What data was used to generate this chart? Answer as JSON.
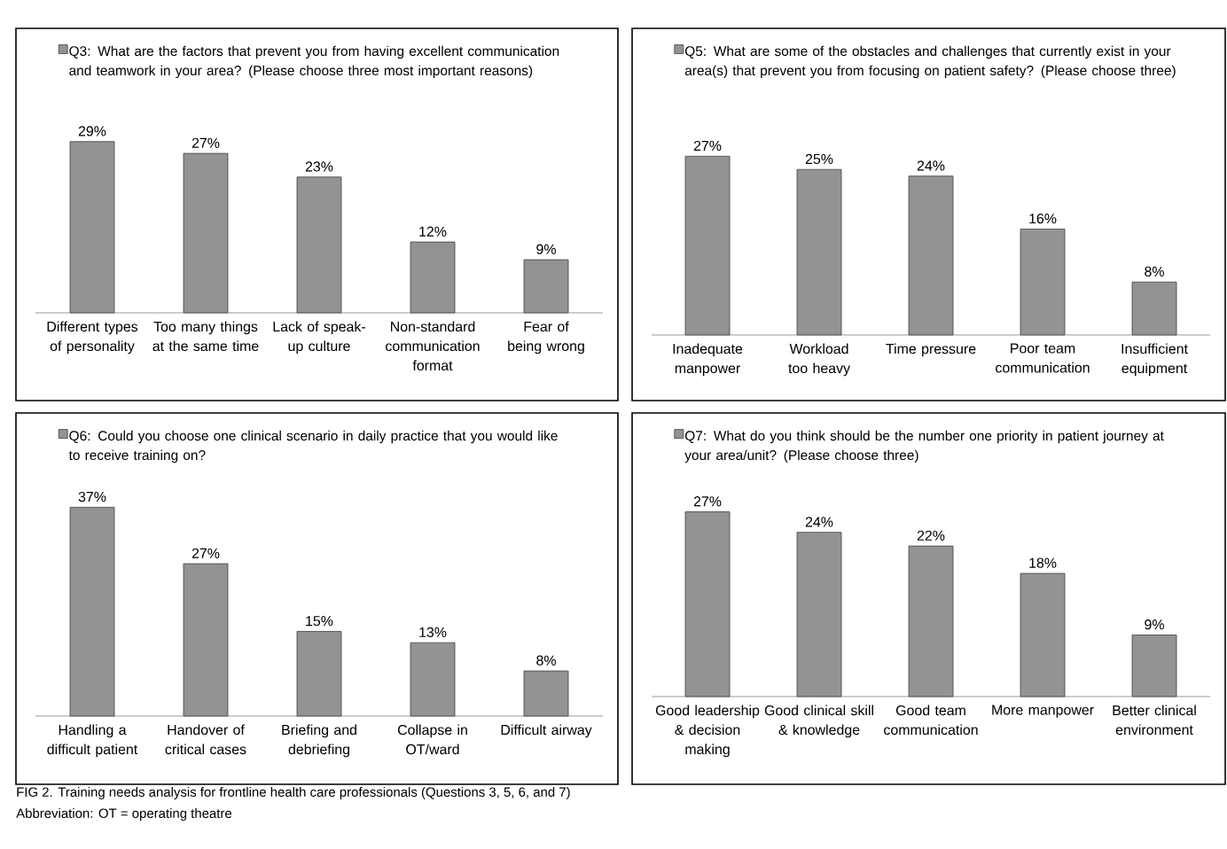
{
  "chart_data": [
    {
      "type": "bar",
      "legend": "top left",
      "categories": [
        "Different types of personality",
        "Too many things at the same time",
        "Lack of speak-up culture",
        "Non-standard communication format",
        "Fear of being wrong"
      ],
      "series": [
        {
          "name": "Q3: What are the factors that prevent you from having excellent communication and teamwork in your area? (Please choose three most important reasons)",
          "color": "#939393",
          "values": [
            29,
            27,
            23,
            12,
            9
          ],
          "value_labels": [
            "29%",
            "27%",
            "23%",
            "12%",
            "9%"
          ]
        }
      ],
      "annotations": [
        "FIG 2. Training needs analysis for frontline health care professionals (Questions 3, 5, 6, and 7)",
        "Abbreviation: OT = operating theatre"
      ]
    },
    {
      "type": "bar",
      "legend": "top left",
      "categories": [
        "Inadequate manpower",
        "Workload too heavy",
        "Time pressure",
        "Poor team communication",
        "Insufficient equipment"
      ],
      "series": [
        {
          "name": "Q5: What are some of the obstacles and challenges that currently exist in your area(s) that prevent you from focusing on patient safety? (Please choose three)",
          "color": "#939393",
          "values": [
            27,
            25,
            24,
            16,
            8
          ],
          "value_labels": [
            "27%",
            "25%",
            "24%",
            "16%",
            "8%"
          ]
        }
      ]
    },
    {
      "type": "bar",
      "legend": "top left",
      "categories": [
        "Handling a difficult patient",
        "Handover of critical cases",
        "Briefing and debriefing",
        "Collapse in OT/ward",
        "Difficult airway"
      ],
      "series": [
        {
          "name": "Q6: Could you choose one clinical scenario in daily practice that you would like to receive training on?",
          "color": "#939393",
          "values": [
            37,
            27,
            15,
            13,
            8
          ],
          "value_labels": [
            "37%",
            "27%",
            "15%",
            "13%",
            "8%"
          ]
        }
      ]
    },
    {
      "type": "bar",
      "legend": "top left",
      "categories": [
        "Good leadership & decision making",
        "Good clinical skill & knowledge",
        "Good team communication",
        "More manpower",
        "Better clinical environment"
      ],
      "series": [
        {
          "name": "Q7: What do you think should be the number one priority in patient journey at your area/unit? (Please choose three)",
          "color": "#939393",
          "values": [
            27,
            24,
            22,
            18,
            9
          ],
          "value_labels": [
            "27%",
            "24%",
            "22%",
            "18%",
            "9%"
          ]
        }
      ]
    }
  ]
}
